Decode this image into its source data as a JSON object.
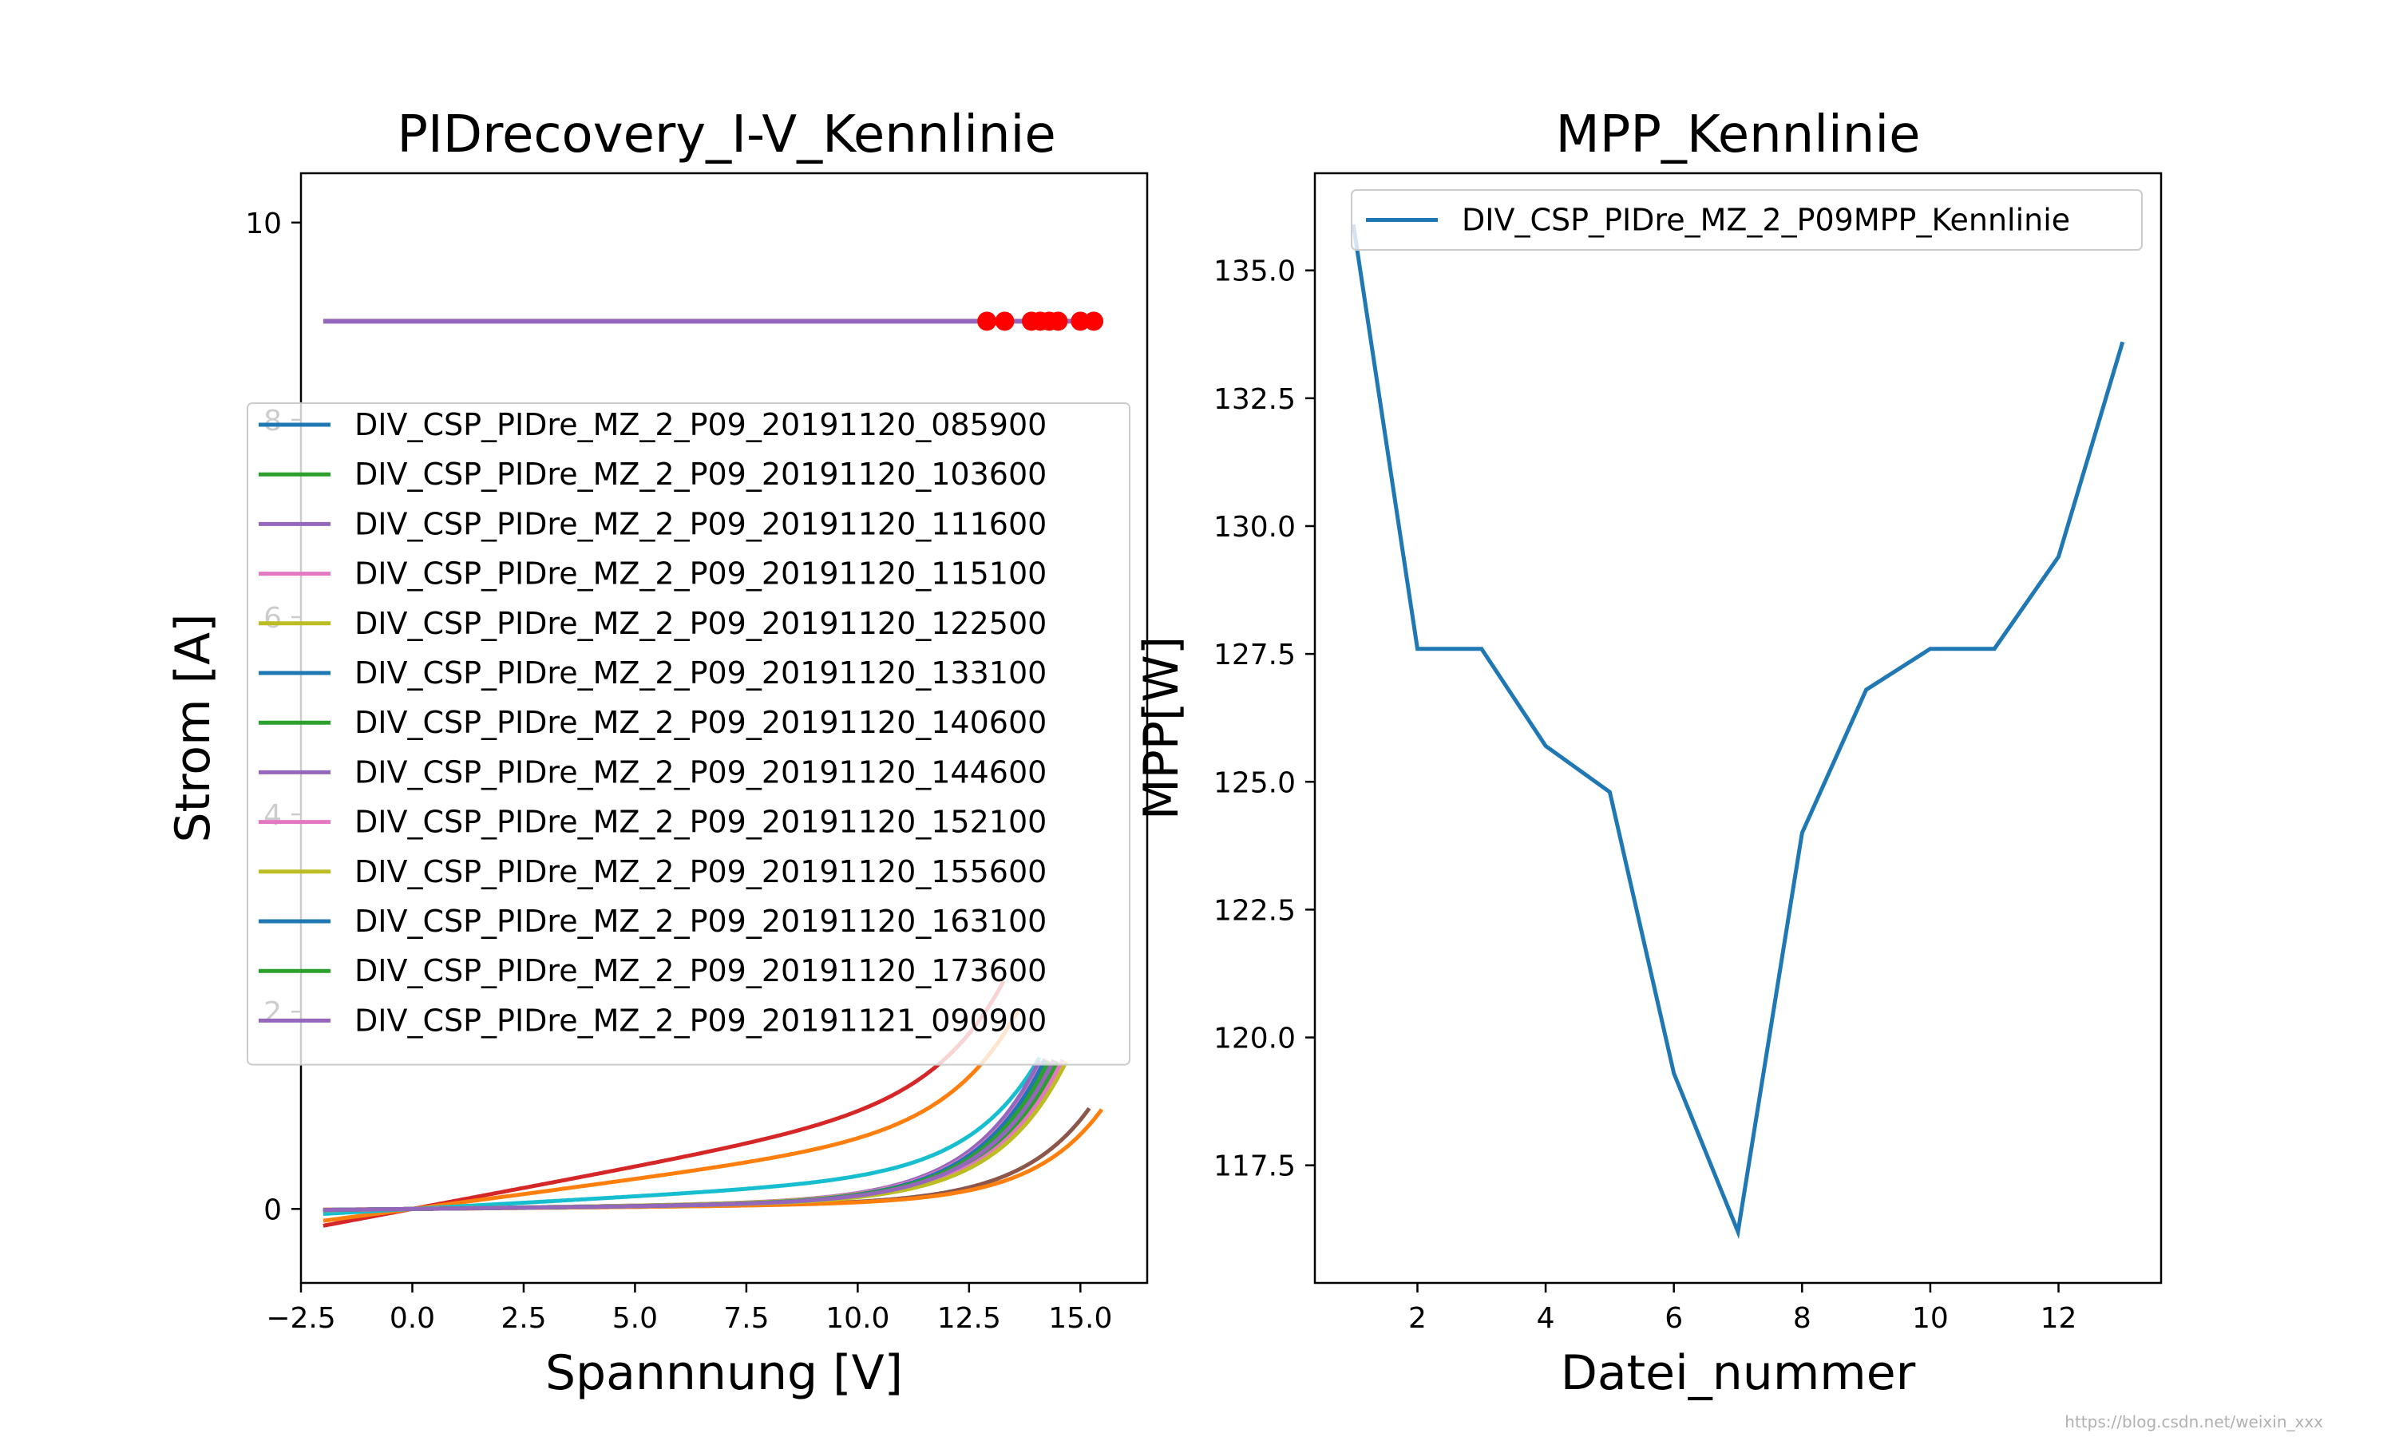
{
  "chart_data": [
    {
      "type": "line",
      "title": "PIDrecovery_I-V_Kennlinie",
      "xlabel": "Spannnung [V]",
      "ylabel": "Strom [A]",
      "xlim": [
        -2.5,
        16.5
      ],
      "ylim": [
        -0.75,
        10.5
      ],
      "xticks": [
        -2.5,
        0.0,
        2.5,
        5.0,
        7.5,
        10.0,
        12.5,
        15.0
      ],
      "xtick_labels": [
        "−2.5",
        "0.0",
        "2.5",
        "5.0",
        "7.5",
        "10.0",
        "12.5",
        "15.0"
      ],
      "yticks": [
        0,
        2,
        4,
        6,
        8,
        10
      ],
      "ytick_labels": [
        "0",
        "2",
        "4",
        "6",
        "8",
        "10"
      ],
      "legend_position": "center-left",
      "horizontal_line": {
        "y": 9.0,
        "x_range": [
          -2.0,
          15.4
        ],
        "color": "#9467bd"
      },
      "mpp_markers": {
        "color": "#ff0000",
        "y": 9.0,
        "x": [
          12.9,
          13.3,
          13.9,
          14.1,
          14.3,
          14.5,
          15.0,
          15.3
        ]
      },
      "series": [
        {
          "name": "DIV_CSP_PIDre_MZ_2_P09_20191120_085900",
          "color": "#1f77b4",
          "voc": 14.2,
          "slope": 0.005,
          "isc_scale": 0.03,
          "steep": 1.55
        },
        {
          "name": "DIV_CSP_PIDre_MZ_2_P09_20191120_103600",
          "color": "#2ca02c",
          "voc": 14.3,
          "slope": 0.005,
          "isc_scale": 0.03,
          "steep": 1.55
        },
        {
          "name": "DIV_CSP_PIDre_MZ_2_P09_20191120_111600",
          "color": "#9467bd",
          "voc": 14.1,
          "slope": 0.006,
          "isc_scale": 0.03,
          "steep": 1.55
        },
        {
          "name": "DIV_CSP_PIDre_MZ_2_P09_20191120_115100",
          "color": "#e377c2",
          "voc": 14.2,
          "slope": 0.006,
          "isc_scale": 0.03,
          "steep": 1.55
        },
        {
          "name": "DIV_CSP_PIDre_MZ_2_P09_20191120_122500",
          "color": "#bcbd22",
          "voc": 14.3,
          "slope": 0.006,
          "isc_scale": 0.03,
          "steep": 1.55
        },
        {
          "name": "DIV_CSP_PIDre_MZ_2_P09_20191120_133100",
          "color": "#1f77b4",
          "voc": 14.4,
          "slope": 0.005,
          "isc_scale": 0.03,
          "steep": 1.55
        },
        {
          "name": "DIV_CSP_PIDre_MZ_2_P09_20191120_140600",
          "color": "#2ca02c",
          "voc": 14.5,
          "slope": 0.005,
          "isc_scale": 0.03,
          "steep": 1.55
        },
        {
          "name": "DIV_CSP_PIDre_MZ_2_P09_20191120_144600",
          "color": "#9467bd",
          "voc": 14.4,
          "slope": 0.005,
          "isc_scale": 0.03,
          "steep": 1.55
        },
        {
          "name": "DIV_CSP_PIDre_MZ_2_P09_20191120_152100",
          "color": "#e377c2",
          "voc": 14.6,
          "slope": 0.005,
          "isc_scale": 0.03,
          "steep": 1.55
        },
        {
          "name": "DIV_CSP_PIDre_MZ_2_P09_20191120_155600",
          "color": "#bcbd22",
          "voc": 14.7,
          "slope": 0.005,
          "isc_scale": 0.03,
          "steep": 1.55
        },
        {
          "name": "DIV_CSP_PIDre_MZ_2_P09_20191120_163100",
          "color": "#1f77b4",
          "voc": 14.2,
          "slope": 0.005,
          "isc_scale": 0.03,
          "steep": 1.55
        },
        {
          "name": "DIV_CSP_PIDre_MZ_2_P09_20191120_173600",
          "color": "#2ca02c",
          "voc": 14.3,
          "slope": 0.005,
          "isc_scale": 0.03,
          "steep": 1.55
        },
        {
          "name": "DIV_CSP_PIDre_MZ_2_P09_20191121_090900",
          "color": "#9467bd",
          "voc": 14.4,
          "slope": 0.005,
          "isc_scale": 0.03,
          "steep": 1.55
        }
      ],
      "extra_curves": [
        {
          "color": "#d62728",
          "voc": 13.3,
          "slope": 0.085,
          "isc_scale": 0.025,
          "steep": 1.55
        },
        {
          "color": "#ff7f0e",
          "voc": 13.6,
          "slope": 0.06,
          "isc_scale": 0.025,
          "steep": 1.55
        },
        {
          "color": "#17becf",
          "voc": 14.1,
          "slope": 0.025,
          "isc_scale": 0.025,
          "steep": 1.55
        },
        {
          "color": "#8c564b",
          "voc": 15.2,
          "slope": 0.004,
          "isc_scale": 0.02,
          "steep": 1.55
        },
        {
          "color": "#ff7f0e",
          "voc": 15.5,
          "slope": 0.004,
          "isc_scale": 0.02,
          "steep": 1.55
        }
      ]
    },
    {
      "type": "line",
      "title": "MPP_Kennlinie",
      "xlabel": "Datei_nummer",
      "ylabel": "MPP[W]",
      "xlim": [
        0.4,
        13.6
      ],
      "ylim": [
        115.2,
        136.9
      ],
      "xticks": [
        2,
        4,
        6,
        8,
        10,
        12
      ],
      "xtick_labels": [
        "2",
        "4",
        "6",
        "8",
        "10",
        "12"
      ],
      "yticks": [
        117.5,
        120.0,
        122.5,
        125.0,
        127.5,
        130.0,
        132.5,
        135.0
      ],
      "ytick_labels": [
        "117.5",
        "120.0",
        "122.5",
        "125.0",
        "127.5",
        "130.0",
        "132.5",
        "135.0"
      ],
      "legend_position": "top",
      "series": [
        {
          "name": "DIV_CSP_PIDre_MZ_2_P09MPP_Kennlinie",
          "color": "#1f77b4",
          "x": [
            1,
            2,
            3,
            4,
            5,
            6,
            7,
            8,
            9,
            10,
            11,
            12,
            13
          ],
          "values": [
            135.9,
            127.6,
            127.6,
            125.7,
            124.8,
            119.3,
            116.2,
            124.0,
            126.8,
            127.6,
            127.6,
            129.4,
            133.6
          ]
        }
      ]
    }
  ],
  "watermark": "https://blog.csdn.net/weixin_xxx"
}
